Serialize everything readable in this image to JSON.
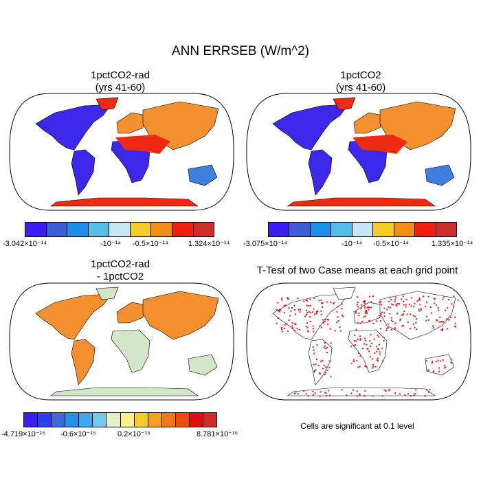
{
  "title": "ANN ERRSEB (W/m^2)",
  "panels": {
    "tl": {
      "title_line1": "1pctCO2-rad",
      "title_line2": "(yrs 41-60)"
    },
    "tr": {
      "title_line1": "1pctCO2",
      "title_line2": "(yrs 41-60)"
    },
    "bl": {
      "title_line1": "1pctCO2-rad",
      "title_line2": "- 1pctCO2"
    },
    "br": {
      "title_line1": "T-Test of two Case means at each grid point"
    }
  },
  "colorbars": {
    "tl": {
      "colors": [
        "#3b1ef2",
        "#3d5bd9",
        "#1e8ee8",
        "#56bde8",
        "#c8e6f4",
        "#f6cc28",
        "#f48c18",
        "#f02010",
        "#cc2d2d"
      ],
      "labels": [
        "-3.042×10⁻¹⁴",
        "-10⁻¹⁴",
        "-0.5×10⁻¹⁴",
        "1.324×10⁻¹⁴"
      ]
    },
    "tr": {
      "colors": [
        "#3b1ef2",
        "#3d5bd9",
        "#1e8ee8",
        "#56bde8",
        "#c8e6f4",
        "#f6cc28",
        "#f48c18",
        "#f02010",
        "#cc2d2d"
      ],
      "labels": [
        "-3.075×10⁻¹⁴",
        "-10⁻¹⁴",
        "-0.5×10⁻¹⁴",
        "1.335×10⁻¹⁴"
      ]
    },
    "bl": {
      "colors": [
        "#3b1ef2",
        "#2f3ef0",
        "#3d6ad8",
        "#2590e6",
        "#40a8ea",
        "#78c8ee",
        "#e6f0c8",
        "#fff08a",
        "#f6cc28",
        "#f4a020",
        "#f07818",
        "#f04a14",
        "#e01010",
        "#cc2d2d"
      ],
      "labels": [
        "-4.719×10⁻¹⁵",
        "-0.6×10⁻¹⁵",
        "0.2×10⁻¹⁵",
        "8.781×10⁻¹⁵"
      ]
    }
  },
  "note": "Cells are significant at 0.1 level",
  "map_colors": {
    "warm": "#ee2a12",
    "cold": "#3b28e8",
    "mid": "#f49030",
    "cool": "#3f7fe0",
    "ocean": "#ffffff",
    "ttest": "#e81010",
    "diff_bg": "#d4e6c8"
  }
}
